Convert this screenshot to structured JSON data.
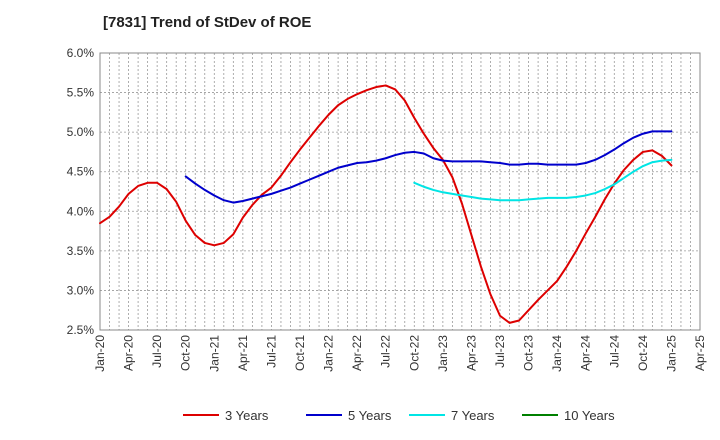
{
  "chart_data": {
    "type": "line",
    "title": "[7831]  Trend of StDev of ROE",
    "xlabel": "",
    "ylabel": "",
    "ylim": [
      2.5,
      6.0
    ],
    "grid": true,
    "legend_position": "bottom",
    "x_tick_labels": [
      "Jan-20",
      "Apr-20",
      "Jul-20",
      "Oct-20",
      "Jan-21",
      "Apr-21",
      "Jul-21",
      "Oct-21",
      "Jan-22",
      "Apr-22",
      "Jul-22",
      "Oct-22",
      "Jan-23",
      "Apr-23",
      "Jul-23",
      "Oct-23",
      "Jan-24",
      "Apr-24",
      "Jul-24",
      "Oct-24",
      "Jan-25",
      "Apr-25"
    ],
    "y_tick_labels": [
      "2.5%",
      "3.0%",
      "3.5%",
      "4.0%",
      "4.5%",
      "5.0%",
      "5.5%",
      "6.0%"
    ],
    "y_tick_values": [
      2.5,
      3.0,
      3.5,
      4.0,
      4.5,
      5.0,
      5.5,
      6.0
    ],
    "series": [
      {
        "name": "3 Years",
        "color": "#dd0000",
        "x": [
          "2020-01",
          "2020-02",
          "2020-03",
          "2020-04",
          "2020-05",
          "2020-06",
          "2020-07",
          "2020-08",
          "2020-09",
          "2020-10",
          "2020-11",
          "2020-12",
          "2021-01",
          "2021-02",
          "2021-03",
          "2021-04",
          "2021-05",
          "2021-06",
          "2021-07",
          "2021-08",
          "2021-09",
          "2021-10",
          "2021-11",
          "2021-12",
          "2022-01",
          "2022-02",
          "2022-03",
          "2022-04",
          "2022-05",
          "2022-06",
          "2022-07",
          "2022-08",
          "2022-09",
          "2022-10",
          "2022-11",
          "2022-12",
          "2023-01",
          "2023-02",
          "2023-03",
          "2023-04",
          "2023-05",
          "2023-06",
          "2023-07",
          "2023-08",
          "2023-09",
          "2023-10",
          "2023-11",
          "2023-12",
          "2024-01",
          "2024-02",
          "2024-03",
          "2024-04",
          "2024-05",
          "2024-06",
          "2024-07",
          "2024-08",
          "2024-09",
          "2024-10",
          "2024-11",
          "2024-12",
          "2025-01"
        ],
        "values": [
          3.85,
          3.93,
          4.06,
          4.22,
          4.32,
          4.36,
          4.36,
          4.28,
          4.12,
          3.88,
          3.7,
          3.6,
          3.57,
          3.6,
          3.71,
          3.92,
          4.08,
          4.21,
          4.3,
          4.45,
          4.62,
          4.78,
          4.93,
          5.08,
          5.22,
          5.34,
          5.42,
          5.48,
          5.53,
          5.57,
          5.59,
          5.54,
          5.4,
          5.18,
          4.98,
          4.8,
          4.65,
          4.43,
          4.1,
          3.7,
          3.3,
          2.95,
          2.68,
          2.59,
          2.62,
          2.75,
          2.88,
          3.0,
          3.12,
          3.3,
          3.5,
          3.72,
          3.93,
          4.15,
          4.35,
          4.52,
          4.65,
          4.75,
          4.77,
          4.7,
          4.58
        ]
      },
      {
        "name": "5 Years",
        "color": "#0000cc",
        "x": [
          "2020-10",
          "2020-11",
          "2020-12",
          "2021-01",
          "2021-02",
          "2021-03",
          "2021-04",
          "2021-05",
          "2021-06",
          "2021-07",
          "2021-08",
          "2021-09",
          "2021-10",
          "2021-11",
          "2021-12",
          "2022-01",
          "2022-02",
          "2022-03",
          "2022-04",
          "2022-05",
          "2022-06",
          "2022-07",
          "2022-08",
          "2022-09",
          "2022-10",
          "2022-11",
          "2022-12",
          "2023-01",
          "2023-02",
          "2023-03",
          "2023-04",
          "2023-05",
          "2023-06",
          "2023-07",
          "2023-08",
          "2023-09",
          "2023-10",
          "2023-11",
          "2023-12",
          "2024-01",
          "2024-02",
          "2024-03",
          "2024-04",
          "2024-05",
          "2024-06",
          "2024-07",
          "2024-08",
          "2024-09",
          "2024-10",
          "2024-11",
          "2024-12",
          "2025-01"
        ],
        "values": [
          4.44,
          4.35,
          4.27,
          4.2,
          4.14,
          4.11,
          4.13,
          4.16,
          4.19,
          4.22,
          4.26,
          4.3,
          4.35,
          4.4,
          4.45,
          4.5,
          4.55,
          4.58,
          4.61,
          4.62,
          4.64,
          4.67,
          4.71,
          4.74,
          4.75,
          4.73,
          4.67,
          4.64,
          4.63,
          4.63,
          4.63,
          4.63,
          4.62,
          4.61,
          4.59,
          4.59,
          4.6,
          4.6,
          4.59,
          4.59,
          4.59,
          4.59,
          4.61,
          4.65,
          4.71,
          4.78,
          4.86,
          4.93,
          4.98,
          5.01,
          5.01,
          5.01
        ]
      },
      {
        "name": "7 Years",
        "color": "#00e5e5",
        "x": [
          "2022-10",
          "2022-11",
          "2022-12",
          "2023-01",
          "2023-02",
          "2023-03",
          "2023-04",
          "2023-05",
          "2023-06",
          "2023-07",
          "2023-08",
          "2023-09",
          "2023-10",
          "2023-11",
          "2023-12",
          "2024-01",
          "2024-02",
          "2024-03",
          "2024-04",
          "2024-05",
          "2024-06",
          "2024-07",
          "2024-08",
          "2024-09",
          "2024-10",
          "2024-11",
          "2024-12",
          "2025-01"
        ],
        "values": [
          4.36,
          4.31,
          4.27,
          4.24,
          4.22,
          4.2,
          4.18,
          4.16,
          4.15,
          4.14,
          4.14,
          4.14,
          4.15,
          4.16,
          4.17,
          4.17,
          4.17,
          4.18,
          4.2,
          4.23,
          4.28,
          4.34,
          4.42,
          4.5,
          4.57,
          4.62,
          4.64,
          4.65
        ]
      },
      {
        "name": "10 Years",
        "color": "#008000",
        "x": [],
        "values": []
      }
    ]
  }
}
